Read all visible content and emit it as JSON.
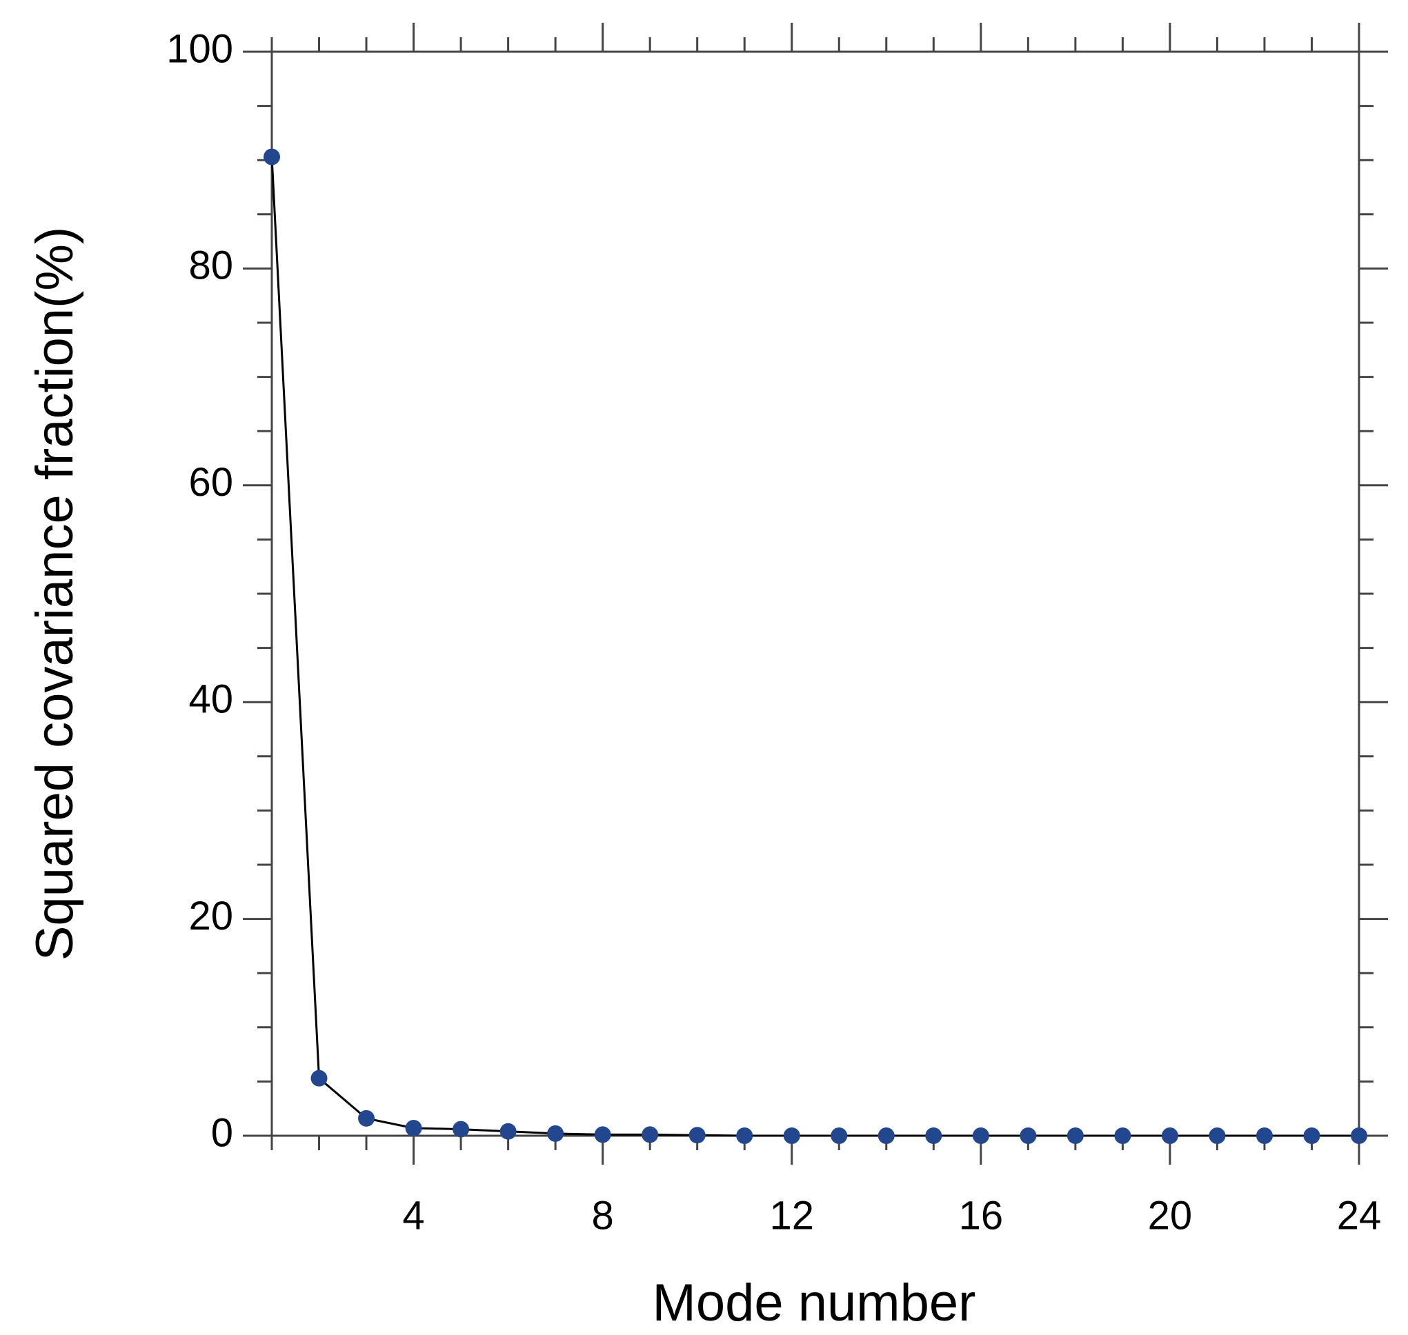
{
  "chart_data": {
    "type": "line",
    "x_label": "Mode number",
    "y_label": "Squared covariance fraction(%)",
    "x": [
      1,
      2,
      3,
      4,
      5,
      6,
      7,
      8,
      9,
      10,
      11,
      12,
      13,
      14,
      15,
      16,
      17,
      18,
      19,
      20,
      21,
      22,
      23,
      24
    ],
    "series": [
      {
        "color": "#23478f",
        "line_color": "#000000",
        "values": [
          90.3,
          5.3,
          1.6,
          0.7,
          0.6,
          0.4,
          0.2,
          0.1,
          0.1,
          0.05,
          0,
          0,
          0,
          0,
          0,
          0,
          0,
          0,
          0,
          0,
          0,
          0,
          0,
          0
        ]
      }
    ],
    "xlim": [
      1,
      24
    ],
    "xticks": [
      4,
      8,
      12,
      16,
      20,
      24
    ],
    "xminorticks": [
      1,
      2,
      3,
      5,
      6,
      7,
      9,
      10,
      11,
      13,
      14,
      15,
      17,
      18,
      19,
      21,
      22,
      23
    ],
    "ylim": [
      0,
      100
    ],
    "yticks": [
      0,
      20,
      40,
      60,
      80,
      100
    ],
    "yminorticks": [
      5,
      10,
      15,
      25,
      30,
      35,
      45,
      50,
      55,
      65,
      70,
      75,
      85,
      90,
      95
    ],
    "grid": false
  }
}
